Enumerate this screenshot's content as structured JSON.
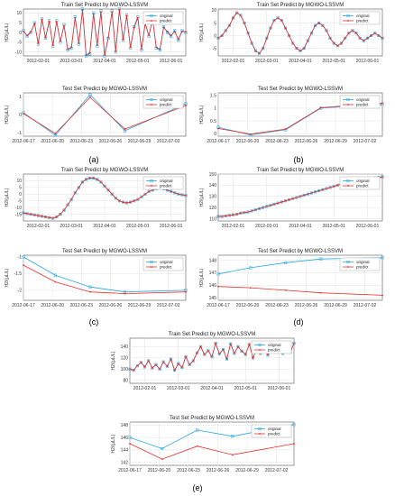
{
  "colors": {
    "original": "#2ba7e0",
    "predict": "#e8302b",
    "grid": "#e2e2e2",
    "axis": "#333333"
  },
  "subfigure_labels": [
    "(a)",
    "(b)",
    "(c)",
    "(d)",
    "(e)"
  ],
  "train_title": "Train Set Predict by MGWO-LSSVM",
  "test_title": "Test Set Predict by MGWO-LSSVM",
  "ylabel": "H2/(μL/L)",
  "legend": {
    "original": "original",
    "predict": "predict"
  },
  "chart_data": [
    {
      "id": "a-train",
      "type": "line",
      "title": "Train Set Predict by MGWO-LSSVM",
      "ylabel": "H2/(μL/L)",
      "xlabels": [
        "2012-02-01",
        "2012-03-01",
        "2012-04-01",
        "2012-05-01",
        "2012-06-01"
      ],
      "xtick_pos": [
        4,
        13,
        22,
        31,
        40
      ],
      "yticks": [
        10,
        5,
        0,
        -5,
        -10
      ],
      "ylim": [
        -12,
        12
      ],
      "xlim": [
        0,
        44
      ],
      "series": [
        {
          "name": "original",
          "values": [
            1,
            -2,
            0,
            5,
            -6,
            7,
            -3,
            6,
            -7,
            6,
            -5,
            4,
            -9,
            -8,
            8,
            -6,
            12,
            -12,
            -11,
            10,
            -7,
            11,
            -12,
            -3,
            11,
            -10,
            12,
            -4,
            9,
            -8,
            3,
            8,
            -9,
            5,
            -2,
            7,
            -8,
            -9,
            3,
            0,
            -2,
            1,
            -4,
            1,
            0
          ]
        },
        {
          "name": "predict",
          "values": [
            0.5,
            -1.5,
            0.3,
            4.5,
            -5.5,
            6.5,
            -2.5,
            5.5,
            -6.5,
            5.5,
            -4.5,
            3.5,
            -8.5,
            -7.5,
            7.5,
            -5.5,
            11.5,
            -11.5,
            -10.5,
            9.5,
            -6.5,
            10.5,
            -11.5,
            -2.5,
            10.5,
            -9.5,
            11.5,
            -3.5,
            8.5,
            -7.5,
            2.5,
            7.5,
            -8.5,
            4.5,
            -1.5,
            6.5,
            -7.5,
            -8.5,
            2.5,
            0.5,
            -1.5,
            0.5,
            -3.5,
            0.5,
            0.3
          ]
        }
      ]
    },
    {
      "id": "a-test",
      "type": "line",
      "title": "Test Set Predict by MGWO-LSSVM",
      "ylabel": "H2/(μL/L)",
      "xlabels": [
        "2012-06-17",
        "2012-06-20",
        "2012-06-23",
        "2012-06-26",
        "2012-06-29",
        "2012-07-02"
      ],
      "xtick_pos": [
        0,
        1,
        2,
        3,
        4,
        5
      ],
      "yticks": [
        1,
        0,
        -1
      ],
      "ylim": [
        -1.2,
        1.2
      ],
      "xlim": [
        0,
        5.6
      ],
      "series": [
        {
          "name": "original",
          "values": [
            0.1,
            -1.15,
            1.1,
            -0.9,
            0.6
          ],
          "x": [
            0,
            1.1,
            2.3,
            3.5,
            5.6
          ]
        },
        {
          "name": "predict",
          "values": [
            0.05,
            -1.05,
            0.95,
            -0.8,
            0.5
          ],
          "x": [
            0,
            1.1,
            2.3,
            3.5,
            5.6
          ]
        }
      ]
    },
    {
      "id": "b-train",
      "type": "line",
      "title": "Train Set Predict by MGWO-LSSVM",
      "ylabel": "H2/(μL/L)",
      "xlabels": [
        "2012-02-01",
        "2012-03-01",
        "2012-04-01",
        "2012-05-01",
        "2012-06-01"
      ],
      "xtick_pos": [
        4,
        13,
        22,
        31,
        40
      ],
      "yticks": [
        10,
        5,
        0,
        -5
      ],
      "ylim": [
        -8,
        10.5
      ],
      "xlim": [
        0,
        44
      ],
      "series": [
        {
          "name": "original",
          "values": [
            -1,
            0,
            2,
            4,
            7,
            9,
            8,
            5,
            1,
            -3,
            -6,
            -7,
            -5,
            -1,
            3,
            6,
            7,
            6,
            3,
            0,
            -3,
            -5,
            -6,
            -5,
            -2,
            1,
            4,
            5,
            4,
            2,
            -1,
            -3,
            -4,
            -3,
            -1,
            1,
            2,
            1,
            -1,
            -2,
            -1,
            0,
            1,
            0,
            -1
          ]
        },
        {
          "name": "predict",
          "values": [
            -1,
            0,
            2,
            4,
            7,
            9,
            8,
            5,
            1,
            -3,
            -6,
            -7,
            -5,
            -1,
            3,
            6,
            7,
            6,
            3,
            0,
            -3,
            -5,
            -6,
            -5,
            -2,
            1,
            4,
            5,
            4,
            2,
            -1,
            -3,
            -4,
            -3,
            -1,
            1,
            2,
            1,
            -1,
            -2,
            -1,
            0,
            1,
            0,
            -1
          ]
        }
      ]
    },
    {
      "id": "b-test",
      "type": "line",
      "title": "Test Set Predict by MGWO-LSSVM",
      "ylabel": "H2/(μL/L)",
      "xlabels": [
        "2012-06-17",
        "2012-06-20",
        "2012-06-23",
        "2012-06-26",
        "2012-06-29",
        "2012-07-02"
      ],
      "xtick_pos": [
        0,
        1,
        2,
        3,
        4,
        5
      ],
      "yticks": [
        1.5,
        1,
        0.5,
        0
      ],
      "ylim": [
        -0.1,
        1.6
      ],
      "xlim": [
        0,
        5.6
      ],
      "series": [
        {
          "name": "original",
          "values": [
            0.25,
            -0.05,
            0.15,
            1.0,
            1.15
          ],
          "x": [
            0,
            1.1,
            2.3,
            3.5,
            5.6
          ]
        },
        {
          "name": "predict",
          "values": [
            0.2,
            -0.02,
            0.18,
            1.02,
            1.2
          ],
          "x": [
            0,
            1.1,
            2.3,
            3.5,
            5.6
          ]
        }
      ]
    },
    {
      "id": "c-train",
      "type": "line",
      "title": "Train Set Predict by MGWO-LSSVM",
      "ylabel": "H2/(μL/L)",
      "xlabels": [
        "2012-02-01",
        "2012-03-01",
        "2012-04-01",
        "2012-05-01",
        "2012-06-01"
      ],
      "xtick_pos": [
        4,
        13,
        22,
        31,
        40
      ],
      "yticks": [
        10,
        5,
        0,
        -5,
        -10,
        -15
      ],
      "ylim": [
        -20,
        15
      ],
      "xlim": [
        0,
        44
      ],
      "series": [
        {
          "name": "original",
          "values": [
            -14,
            -14.5,
            -15,
            -15.5,
            -16,
            -16.5,
            -17,
            -17.5,
            -18,
            -17,
            -15,
            -12,
            -8,
            -4,
            1,
            5,
            9,
            11,
            12,
            12,
            11,
            9,
            6,
            3,
            0,
            -3,
            -5,
            -6,
            -6.5,
            -6,
            -5,
            -4,
            -2,
            0,
            2,
            3,
            4,
            4.5,
            4,
            3,
            2,
            1,
            0,
            -0.5,
            -1
          ]
        },
        {
          "name": "predict",
          "values": [
            -14,
            -14.5,
            -15,
            -15.5,
            -16,
            -16.5,
            -17,
            -17.5,
            -18,
            -17,
            -15,
            -12,
            -8,
            -4,
            1,
            5,
            9,
            11,
            12,
            12,
            11,
            9,
            6,
            3,
            0,
            -3,
            -5,
            -6,
            -6.5,
            -6,
            -5,
            -4,
            -2,
            0,
            2,
            3,
            4,
            4.5,
            4,
            3,
            2,
            1,
            0,
            -0.5,
            -1
          ]
        }
      ]
    },
    {
      "id": "c-test",
      "type": "line",
      "title": "Test Set Predict by MGWO-LSSVM",
      "ylabel": "H2/(μL/L)",
      "xlabels": [
        "2012-06-17",
        "2012-06-20",
        "2012-06-23",
        "2012-06-26",
        "2012-06-29",
        "2012-07-02"
      ],
      "xtick_pos": [
        0,
        1,
        2,
        3,
        4,
        5
      ],
      "yticks": [
        -1,
        -1.5,
        -2
      ],
      "ylim": [
        -2.3,
        -0.95
      ],
      "xlim": [
        0,
        5.6
      ],
      "series": [
        {
          "name": "original",
          "values": [
            -1.0,
            -1.55,
            -1.9,
            -2.05,
            -2.0
          ],
          "x": [
            0,
            1.1,
            2.3,
            3.5,
            5.6
          ]
        },
        {
          "name": "predict",
          "values": [
            -1.25,
            -1.75,
            -2.05,
            -2.1,
            -2.05
          ],
          "x": [
            0,
            1.1,
            2.3,
            3.5,
            5.6
          ]
        }
      ]
    },
    {
      "id": "d-train",
      "type": "line",
      "title": "Train Set Predict by MGWO-LSSVM",
      "ylabel": "H2/(μL/L)",
      "xlabels": [
        "2012-02-01",
        "2012-03-01",
        "2012-04-01",
        "2012-05-01",
        "2012-06-01"
      ],
      "xtick_pos": [
        4,
        13,
        22,
        31,
        40
      ],
      "yticks": [
        150,
        140,
        130,
        120,
        110
      ],
      "ylim": [
        108,
        150
      ],
      "xlim": [
        0,
        44
      ],
      "series": [
        {
          "name": "original",
          "values": [
            112,
            112,
            112.5,
            113,
            113.5,
            114,
            115,
            115.5,
            116,
            117,
            118,
            119,
            120,
            121,
            122,
            123,
            124,
            125,
            126,
            127,
            128,
            129,
            130,
            131,
            132,
            133,
            134,
            135,
            136,
            137,
            138,
            139,
            140,
            141,
            142,
            143,
            143.5,
            144,
            144.5,
            145,
            145.5,
            146,
            146.5,
            147,
            147.5
          ]
        },
        {
          "name": "predict",
          "values": [
            112,
            112,
            112.5,
            113,
            113.5,
            114,
            115,
            115.5,
            116,
            117,
            118,
            119,
            120,
            121,
            122,
            123,
            124,
            125,
            126,
            127,
            128,
            129,
            130,
            131,
            132,
            133,
            134,
            135,
            136,
            137,
            138,
            139,
            140,
            141,
            142,
            143,
            143.5,
            144,
            144.5,
            145,
            145.5,
            146,
            146.5,
            147,
            147.5
          ]
        }
      ]
    },
    {
      "id": "d-test",
      "type": "line",
      "title": "Test Set Predict by MGWO-LSSVM",
      "ylabel": "H2/(μL/L)",
      "xlabels": [
        "2012-06-17",
        "2012-06-20",
        "2012-06-23",
        "2012-06-26",
        "2012-06-29",
        "2012-07-02"
      ],
      "xtick_pos": [
        0,
        1,
        2,
        3,
        4,
        5
      ],
      "yticks": [
        148,
        147,
        146,
        145
      ],
      "ylim": [
        144.8,
        148.4
      ],
      "xlim": [
        0,
        5.6
      ],
      "series": [
        {
          "name": "original",
          "values": [
            146.9,
            147.4,
            147.8,
            148.1,
            148.2
          ],
          "x": [
            0,
            1.1,
            2.3,
            3.5,
            5.6
          ]
        },
        {
          "name": "predict",
          "values": [
            145.9,
            145.8,
            145.6,
            145.4,
            145.2
          ],
          "x": [
            0,
            1.1,
            2.3,
            3.5,
            5.6
          ]
        }
      ]
    },
    {
      "id": "e-train",
      "type": "line",
      "title": "Train Set Predict by MGWO-LSSVM",
      "ylabel": "H2/(μL/L)",
      "xlabels": [
        "2012-02-01",
        "2012-03-01",
        "2012-04-01",
        "2012-05-01",
        "2012-06-01"
      ],
      "xtick_pos": [
        4,
        13,
        22,
        31,
        40
      ],
      "yticks": [
        140,
        120,
        100,
        80
      ],
      "ylim": [
        75,
        155
      ],
      "xlim": [
        0,
        44
      ],
      "series": [
        {
          "name": "original",
          "values": [
            100,
            98,
            106,
            112,
            104,
            115,
            102,
            108,
            100,
            113,
            105,
            118,
            98,
            110,
            103,
            122,
            108,
            115,
            129,
            140,
            126,
            133,
            122,
            146,
            127,
            135,
            118,
            145,
            128,
            140,
            132,
            126,
            144,
            120,
            136,
            128,
            142,
            125,
            138,
            147,
            134,
            128,
            141,
            130,
            146
          ]
        },
        {
          "name": "predict",
          "values": [
            100,
            98,
            106,
            112,
            104,
            115,
            102,
            108,
            100,
            113,
            105,
            118,
            98,
            110,
            103,
            122,
            108,
            115,
            129,
            140,
            126,
            133,
            122,
            146,
            127,
            135,
            118,
            145,
            128,
            140,
            132,
            126,
            144,
            120,
            136,
            128,
            142,
            125,
            138,
            147,
            134,
            128,
            141,
            130,
            146
          ]
        }
      ]
    },
    {
      "id": "e-test",
      "type": "line",
      "title": "Test Set Predict by MGWO-LSSVM",
      "ylabel": "H2/(μL/L)",
      "xlabels": [
        "2012-06-17",
        "2012-06-20",
        "2012-06-23",
        "2012-06-26",
        "2012-06-29",
        "2012-07-02"
      ],
      "xtick_pos": [
        0,
        1,
        2,
        3,
        4,
        5
      ],
      "yticks": [
        148,
        146,
        144,
        142
      ],
      "ylim": [
        141.5,
        148.5
      ],
      "xlim": [
        0,
        5.6
      ],
      "series": [
        {
          "name": "original",
          "values": [
            146.0,
            144.2,
            147.2,
            146.2,
            148.1
          ],
          "x": [
            0,
            1.1,
            2.3,
            3.5,
            5.6
          ]
        },
        {
          "name": "predict",
          "values": [
            145.0,
            142.5,
            144.6,
            143.2,
            145.0
          ],
          "x": [
            0,
            1.1,
            2.3,
            3.5,
            5.6
          ]
        }
      ]
    }
  ]
}
